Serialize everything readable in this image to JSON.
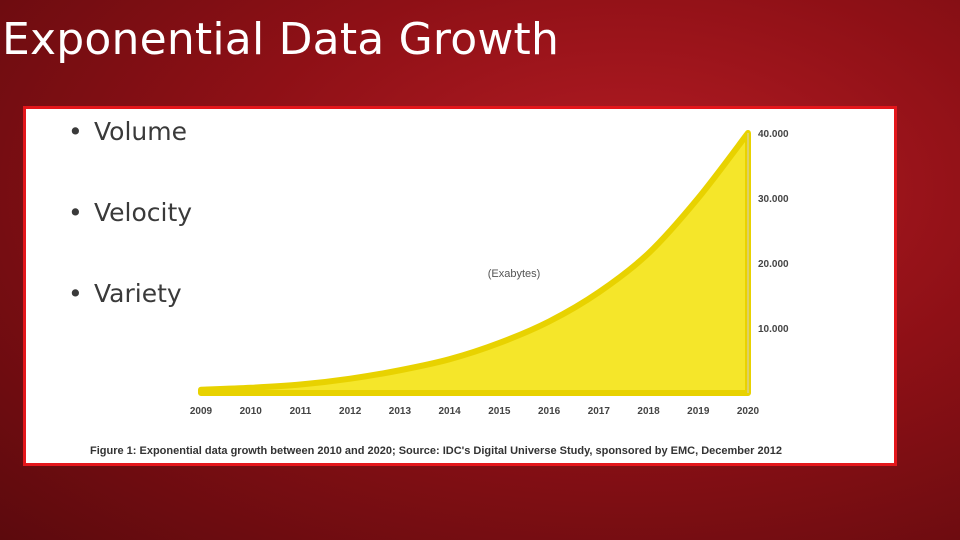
{
  "slide": {
    "title": "Exponential Data Growth",
    "bullets": [
      "Volume",
      "Velocity",
      "Variety"
    ],
    "bullet_glyph": "•"
  },
  "chart_data": {
    "type": "area",
    "x": [
      2009,
      2010,
      2011,
      2012,
      2013,
      2014,
      2015,
      2016,
      2017,
      2018,
      2019,
      2020
    ],
    "series": [
      {
        "values": [
          500,
          800,
          1300,
          2200,
          3500,
          5200,
          7700,
          11000,
          15500,
          21500,
          30000,
          40000
        ]
      }
    ],
    "xlabel": "",
    "ylabel": "",
    "annotation": "(Exabytes)",
    "y_tick_labels": [
      "10.000",
      "20.000",
      "30.000",
      "40.000"
    ],
    "y_tick_values": [
      10000,
      20000,
      30000,
      40000
    ],
    "x_tick_labels": [
      "2009",
      "2010",
      "2011",
      "2012",
      "2013",
      "2014",
      "2015",
      "2016",
      "2017",
      "2018",
      "2019",
      "2020"
    ],
    "ylim": [
      0,
      40000
    ],
    "grid": false,
    "fill_color": "#f5e62a",
    "edge_color": "#e8d200",
    "caption": "Figure 1: Exponential data growth between 2010 and 2020; Source: IDC's Digital Universe Study, sponsored by EMC, December 2012"
  }
}
